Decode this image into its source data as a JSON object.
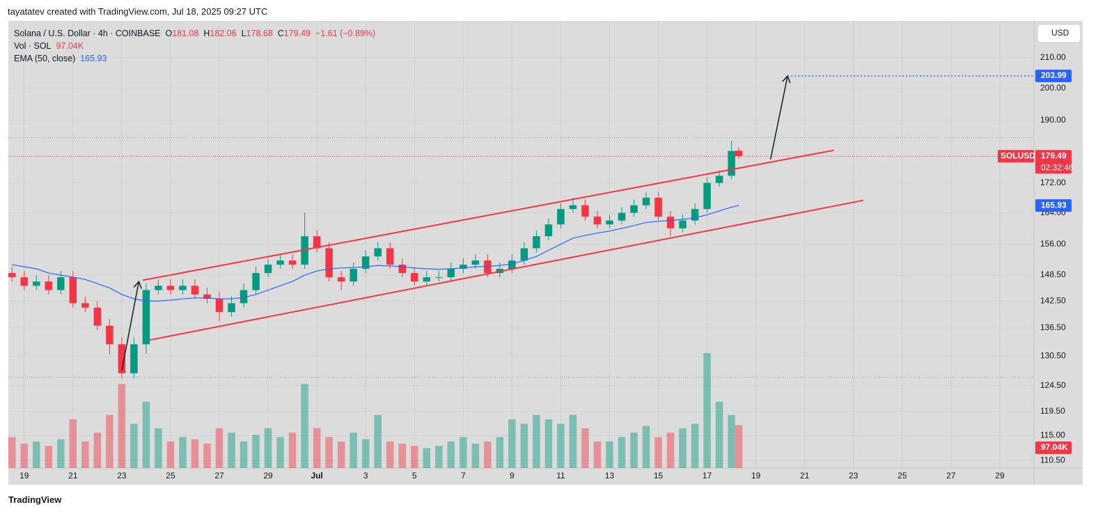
{
  "header": {
    "credit": "tayatatev created with TradingView.com, Jul 18, 2025 09:27 UTC",
    "currency": "USD",
    "brand": "TradingView"
  },
  "chart_data": {
    "type": "candlestick",
    "title": "Solana / U.S. Dollar · 4h · COINBASE",
    "symbol": "SOLUSD",
    "timer": "02:32:46",
    "legend": {
      "o_label": "O",
      "open": 181.08,
      "h_label": "H",
      "high": 182.06,
      "l_label": "L",
      "low": 178.68,
      "c_label": "C",
      "close": 179.49,
      "change": {
        "value": -1.61,
        "label": "−1.61"
      },
      "change_pct": {
        "value": -0.89,
        "label": "(−0.89%)"
      },
      "vol_label": "Vol · SOL",
      "volume": {
        "value": 97040,
        "label": "97.04K"
      },
      "ema_label": "EMA (50, close)",
      "ema": 165.93
    },
    "up_color": "#089981",
    "down_color": "#f23645",
    "ema_color": "#2962ff",
    "target_color": "#2962ff",
    "drawing_color": "#f23645",
    "arrow_color": "#1b2a2a",
    "log_scale": true,
    "grid": true,
    "xlim": [
      18.35,
      60.4
    ],
    "ylim": [
      109.2,
      222.7
    ],
    "xticks": [
      19,
      21,
      23,
      25,
      27,
      29,
      {
        "value": 31,
        "label": "Jul"
      },
      {
        "value": 33,
        "label": "3"
      },
      {
        "value": 35,
        "label": "5"
      },
      {
        "value": 37,
        "label": "7"
      },
      {
        "value": 39,
        "label": "9"
      },
      {
        "value": 41,
        "label": "11"
      },
      {
        "value": 43,
        "label": "13"
      },
      {
        "value": 45,
        "label": "15"
      },
      {
        "value": 47,
        "label": "17"
      },
      {
        "value": 49,
        "label": "19"
      },
      {
        "value": 51,
        "label": "21"
      },
      {
        "value": 53,
        "label": "23"
      },
      {
        "value": 55,
        "label": "25"
      },
      {
        "value": 57,
        "label": "27"
      },
      {
        "value": 59,
        "label": "29"
      }
    ],
    "yticks": [
      {
        "value": 210,
        "label": "210.00"
      },
      {
        "value": 200,
        "label": "200.00"
      },
      {
        "value": 190,
        "label": "190.00"
      },
      {
        "value": 172,
        "label": "172.00"
      },
      {
        "value": 164,
        "label": "164.00"
      },
      {
        "value": 156,
        "label": "156.00"
      },
      {
        "value": 148.5,
        "label": "148.50"
      },
      {
        "value": 142.5,
        "label": "142.50"
      },
      {
        "value": 136.5,
        "label": "136.50"
      },
      {
        "value": 130.5,
        "label": "130.50"
      },
      {
        "value": 124.5,
        "label": "124.50"
      },
      {
        "value": 119.5,
        "label": "119.50"
      },
      {
        "value": 115,
        "label": "115.00"
      },
      {
        "value": 110.5,
        "label": "110.50"
      }
    ],
    "x": [
      18.5,
      19,
      19.5,
      20,
      20.5,
      21,
      21.5,
      22,
      22.5,
      23,
      23.5,
      24,
      24.5,
      25,
      25.5,
      26,
      26.5,
      27,
      27.5,
      28,
      28.5,
      29,
      29.5,
      30,
      30.5,
      31,
      31.5,
      32,
      32.5,
      33,
      33.5,
      34,
      34.5,
      35,
      35.5,
      36,
      36.5,
      37,
      37.5,
      38,
      38.5,
      39,
      39.5,
      40,
      40.5,
      41,
      41.5,
      42,
      42.5,
      43,
      43.5,
      44,
      44.5,
      45,
      45.5,
      46,
      46.5,
      47,
      47.5,
      48,
      48.3
    ],
    "open": [
      149,
      148,
      146,
      147,
      145,
      148,
      142,
      141,
      137,
      133,
      127,
      133,
      145,
      146,
      145,
      146,
      144,
      143,
      140,
      142,
      145,
      149,
      151,
      152,
      151,
      158,
      155,
      148,
      147,
      150,
      153,
      155,
      151,
      149,
      147,
      148,
      148,
      150,
      151,
      152,
      149,
      150,
      152,
      155,
      158,
      161,
      165,
      166,
      163,
      161,
      162,
      164,
      166,
      168,
      163,
      160,
      162,
      165,
      172,
      174,
      181.08
    ],
    "high": [
      150.5,
      149.5,
      148.5,
      148.5,
      149.5,
      149.5,
      143.5,
      142.5,
      138.5,
      134.5,
      134.5,
      146.5,
      147.5,
      147.5,
      147.5,
      147.5,
      145.5,
      144.5,
      143.5,
      146.5,
      150.5,
      152.5,
      153.5,
      153.5,
      164,
      159.5,
      156.5,
      149.5,
      151.5,
      154.5,
      156.5,
      156.5,
      152.5,
      150.5,
      149.5,
      149.5,
      151.5,
      152.5,
      153.5,
      153.5,
      151.5,
      153.5,
      156.5,
      159.5,
      162.5,
      166.5,
      168,
      167.5,
      164.5,
      163.5,
      165.5,
      167.5,
      169.5,
      169.5,
      164.5,
      163.5,
      166.5,
      173.5,
      175.5,
      184,
      182.06
    ],
    "low": [
      147,
      145,
      145,
      144,
      144,
      141,
      140,
      136,
      131,
      126,
      126,
      131,
      144,
      144,
      144,
      143,
      142,
      138,
      139,
      141,
      144,
      148,
      150,
      150,
      150,
      154,
      147,
      145,
      146,
      149,
      152,
      150,
      148,
      146,
      146,
      147,
      147,
      149,
      150,
      148,
      148,
      149,
      151,
      154,
      157,
      160,
      164,
      162,
      160,
      160,
      161,
      163,
      165,
      162,
      158,
      159,
      161,
      164,
      171,
      173,
      178.68
    ],
    "close": [
      148,
      146,
      147,
      145,
      148,
      142,
      141,
      137,
      133,
      127,
      133,
      145,
      146,
      145,
      146,
      144,
      143,
      140,
      142,
      145,
      149,
      151,
      152,
      151,
      158,
      155,
      148,
      147,
      150,
      153,
      155,
      151,
      149,
      147,
      148,
      148,
      150,
      151,
      152,
      149,
      150,
      152,
      155,
      158,
      161,
      165,
      166,
      163,
      161,
      162,
      164,
      166,
      168,
      163,
      160,
      162,
      165,
      172,
      174,
      181,
      179.49
    ],
    "volume": [
      70000,
      55000,
      60000,
      50000,
      65000,
      110000,
      60000,
      80000,
      120000,
      190000,
      100000,
      150000,
      90000,
      60000,
      70000,
      65000,
      55000,
      90000,
      80000,
      60000,
      75000,
      90000,
      70000,
      80000,
      190000,
      90000,
      70000,
      60000,
      80000,
      65000,
      120000,
      60000,
      55000,
      50000,
      45000,
      50000,
      60000,
      70000,
      55000,
      60000,
      70000,
      110000,
      100000,
      120000,
      110000,
      100000,
      120000,
      90000,
      60000,
      60000,
      70000,
      80000,
      95000,
      70000,
      80000,
      90000,
      100000,
      260000,
      150000,
      120000,
      97040
    ],
    "ema": [
      151,
      150.5,
      150,
      149,
      148.5,
      148,
      147.5,
      146.5,
      145.5,
      144,
      143,
      142.5,
      142.5,
      142.7,
      143,
      143.2,
      143.2,
      143,
      143,
      143.3,
      144,
      145,
      146,
      147,
      148.5,
      149.5,
      150,
      150.2,
      150.3,
      150.5,
      150.8,
      150.7,
      150.5,
      150.2,
      150,
      149.9,
      150,
      150.2,
      150.5,
      150.6,
      150.8,
      151.2,
      152,
      153,
      154.5,
      156,
      157.5,
      158.2,
      158.8,
      159.3,
      160,
      160.7,
      161.5,
      161.8,
      162,
      162.3,
      162.7,
      163.5,
      164.5,
      165.5,
      165.93
    ],
    "channel_upper": {
      "x": [
        23.86,
        52.2
      ],
      "y": [
        147.3,
        181.2
      ]
    },
    "channel_lower": {
      "x": [
        24.14,
        53.4
      ],
      "y": [
        133.9,
        167.3
      ]
    },
    "arrow_up_1": {
      "x": [
        23.0,
        23.7
      ],
      "y": [
        127.5,
        147
      ]
    },
    "arrow_up_2": {
      "x": [
        49.6,
        50.3
      ],
      "y": [
        178.6,
        203.99
      ]
    },
    "target_price": 203.99,
    "range_high": 184.9,
    "range_low": 126.2
  }
}
